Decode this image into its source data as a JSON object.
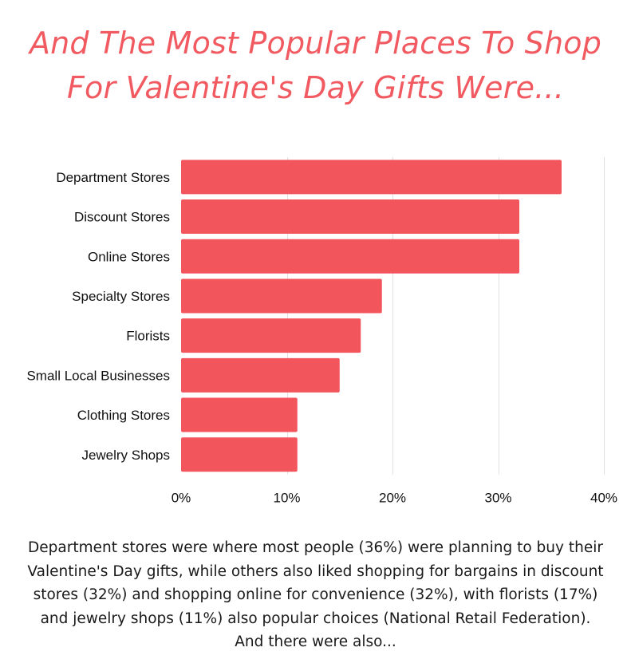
{
  "title": {
    "line1": "And The Most Popular Places To Shop",
    "line2": "For Valentine's Day Gifts Were..."
  },
  "chart_data": {
    "type": "bar",
    "orientation": "horizontal",
    "categories": [
      "Department Stores",
      "Discount Stores",
      "Online Stores",
      "Specialty Stores",
      "Florists",
      "Small Local Businesses",
      "Clothing Stores",
      "Jewelry Shops"
    ],
    "values": [
      36,
      32,
      32,
      19,
      17,
      15,
      11,
      11
    ],
    "xlim": [
      0,
      40
    ],
    "xticks": [
      "0%",
      "10%",
      "20%",
      "30%",
      "40%"
    ],
    "xtick_values": [
      0,
      10,
      20,
      30,
      40
    ],
    "grid": "vertical",
    "bar_color": "#f2555c",
    "grid_color": "#e0e0e0"
  },
  "caption": "Department stores were where most people (36%) were planning to buy their Valentine's Day gifts, while others also liked shopping for bargains in discount stores (32%) and shopping online for convenience (32%), with florists (17%) and jewelry shops (11%) also popular choices (National Retail Federation). And there were also..."
}
